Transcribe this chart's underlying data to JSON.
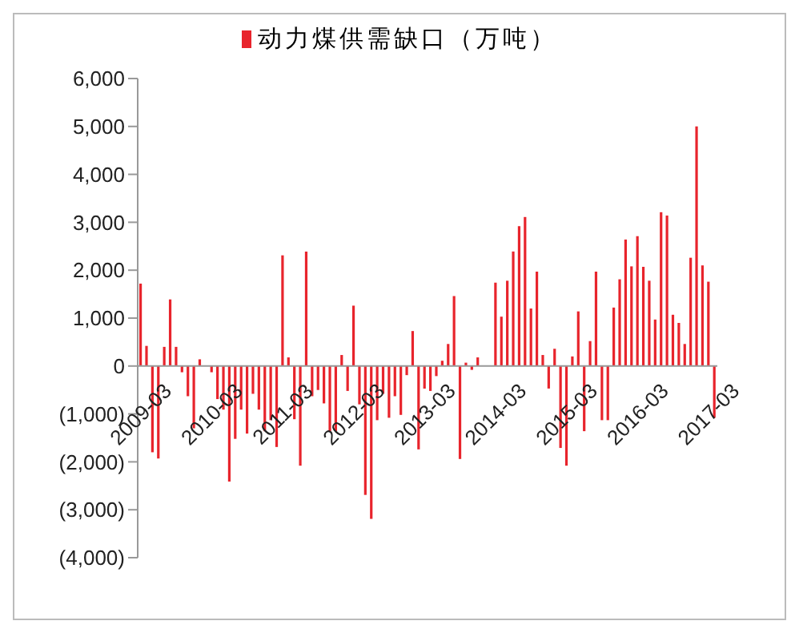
{
  "chart_data": {
    "type": "bar",
    "categories": [
      "2009-03",
      null,
      null,
      null,
      null,
      null,
      null,
      null,
      null,
      null,
      null,
      null,
      "2010-03",
      null,
      null,
      null,
      null,
      null,
      null,
      null,
      null,
      null,
      null,
      null,
      "2011-03",
      null,
      null,
      null,
      null,
      null,
      null,
      null,
      null,
      null,
      null,
      null,
      "2012-03",
      null,
      null,
      null,
      null,
      null,
      null,
      null,
      null,
      null,
      null,
      null,
      "2013-03",
      null,
      null,
      null,
      null,
      null,
      null,
      null,
      null,
      null,
      null,
      null,
      "2014-03",
      null,
      null,
      null,
      null,
      null,
      null,
      null,
      null,
      null,
      null,
      null,
      "2015-03",
      null,
      null,
      null,
      null,
      null,
      null,
      null,
      null,
      null,
      null,
      null,
      "2016-03",
      null,
      null,
      null,
      null,
      null,
      null,
      null,
      null,
      null,
      null,
      null,
      "2017-03",
      null
    ],
    "series": [
      {
        "name": "动力煤供需缺口（万吨）",
        "color": "#e8242c",
        "values": [
          1720,
          420,
          -1800,
          -1930,
          400,
          1390,
          400,
          -130,
          -630,
          -1300,
          140,
          0,
          -130,
          -690,
          -910,
          -2410,
          -1520,
          -910,
          -1410,
          -580,
          -910,
          -1360,
          -1130,
          -1690,
          2310,
          180,
          -1110,
          -2080,
          2390,
          -630,
          -500,
          -780,
          -1360,
          -1360,
          230,
          -520,
          1260,
          -800,
          -2690,
          -3190,
          -1130,
          -580,
          -1080,
          -630,
          -1020,
          -190,
          730,
          -1740,
          -470,
          -520,
          -210,
          110,
          460,
          1460,
          -1940,
          70,
          -80,
          180,
          0,
          0,
          1740,
          1030,
          1780,
          2390,
          2920,
          3110,
          1200,
          1970,
          230,
          -470,
          360,
          -1710,
          -2080,
          200,
          1140,
          -1360,
          520,
          1970,
          -1130,
          -1130,
          1220,
          1810,
          2640,
          2080,
          2710,
          2070,
          1780,
          970,
          3210,
          3140,
          1070,
          900,
          460,
          2260,
          5000,
          2100,
          1760,
          -1080
        ]
      }
    ],
    "ylim": [
      -4000,
      6000
    ],
    "yticks": [
      {
        "value": -4000,
        "label": "(4,000)"
      },
      {
        "value": -3000,
        "label": "(3,000)"
      },
      {
        "value": -2000,
        "label": "(2,000)"
      },
      {
        "value": -1000,
        "label": "(1,000)"
      },
      0,
      {
        "value": 1000,
        "label": "1,000"
      },
      {
        "value": 2000,
        "label": "2,000"
      },
      {
        "value": 3000,
        "label": "3,000"
      },
      {
        "value": 4000,
        "label": "4,000"
      },
      {
        "value": 5000,
        "label": "5,000"
      },
      {
        "value": 6000,
        "label": "6,000"
      }
    ],
    "legend": "top",
    "grid": false
  }
}
